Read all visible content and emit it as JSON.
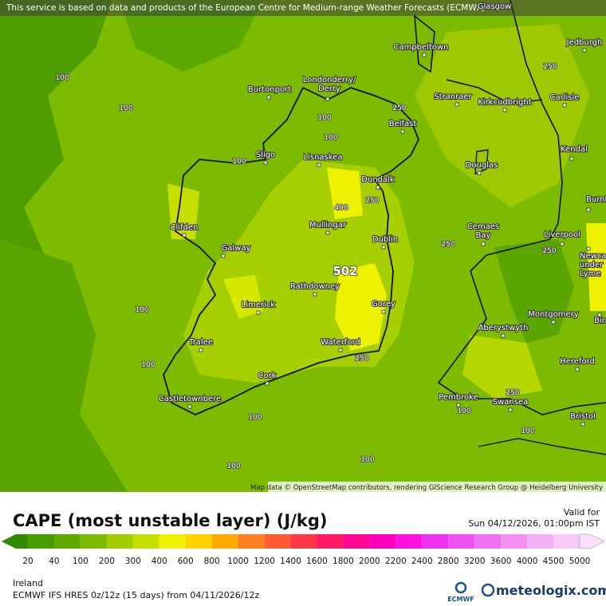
{
  "disclaimer": "This service is based on data and products of the European Centre for Medium-range Weather Forecasts (ECMWF)",
  "cities": [
    [
      "Glasgow"
    ],
    [
      "Jedburgh"
    ],
    [
      "Campbeltown"
    ],
    [
      "Burtonport"
    ],
    [
      "Londonderry/",
      "Derry"
    ],
    [
      "Stranraer"
    ],
    [
      "Kirkcudbright"
    ],
    [
      "Carlisle"
    ],
    [
      "Belfast"
    ],
    [
      "Kendal"
    ],
    [
      "Sligo"
    ],
    [
      "Lisnaskea"
    ],
    [
      "Douglas"
    ],
    [
      "Dundalk"
    ],
    [
      "Burnley"
    ],
    [
      "Clifden"
    ],
    [
      "Mullingar"
    ],
    [
      "Dublin"
    ],
    [
      "Cemaes",
      "Bay"
    ],
    [
      "Liverpool"
    ],
    [
      "Galway"
    ],
    [
      "Newcastle",
      "under",
      "Lyme"
    ],
    [
      "Rathdowney"
    ],
    [
      "Limerick"
    ],
    [
      "Gorey"
    ],
    [
      "Montgomery"
    ],
    [
      "Birmingham"
    ],
    [
      "Aberystwyth"
    ],
    [
      "Tralee"
    ],
    [
      "Waterford"
    ],
    [
      "Hereford"
    ],
    [
      "Cork"
    ],
    [
      "Castletownbere"
    ],
    [
      "Pembroke"
    ],
    [
      "Swansea"
    ],
    [
      "Bristol"
    ]
  ],
  "contour_labels": [
    100,
    100,
    100,
    100,
    100,
    250,
    250,
    250,
    250,
    250,
    250,
    250,
    400,
    502,
    100,
    100,
    100,
    100,
    100,
    100,
    100
  ],
  "map_attribution": "Map data © OpenStreetMap contributors, rendering GIScience Research Group @ Heidelberg University",
  "legend": {
    "title": "CAPE (most unstable layer) (J/kg)",
    "levels": [
      20,
      40,
      100,
      200,
      300,
      400,
      600,
      800,
      1000,
      1200,
      1400,
      1600,
      1800,
      2000,
      2200,
      2400,
      2800,
      3200,
      3600,
      4000,
      4500,
      5000
    ],
    "colors": [
      "#2f8a00",
      "#469c00",
      "#5fab00",
      "#7dbb00",
      "#a0cc00",
      "#c6de00",
      "#eef200",
      "#ffd200",
      "#ffa800",
      "#ff8020",
      "#ff5a30",
      "#ff3848",
      "#ff1868",
      "#ff0898",
      "#ff00c0",
      "#ff10e0",
      "#f030f0",
      "#f050f0",
      "#f070f2",
      "#f490f4",
      "#f6b0f6",
      "#f8c8f8",
      "#fbe0fb"
    ]
  },
  "valid_label": "Valid for",
  "valid_time": "Sun 04/12/2026, 01:00pm IST",
  "region": "Ireland",
  "model_run": "ECMWF IFS HRES 0z/12z (15 days) from  04/11/2026/12z",
  "logos": {
    "ecmwf": "ECMWF",
    "meteologix": "meteologix.com"
  }
}
